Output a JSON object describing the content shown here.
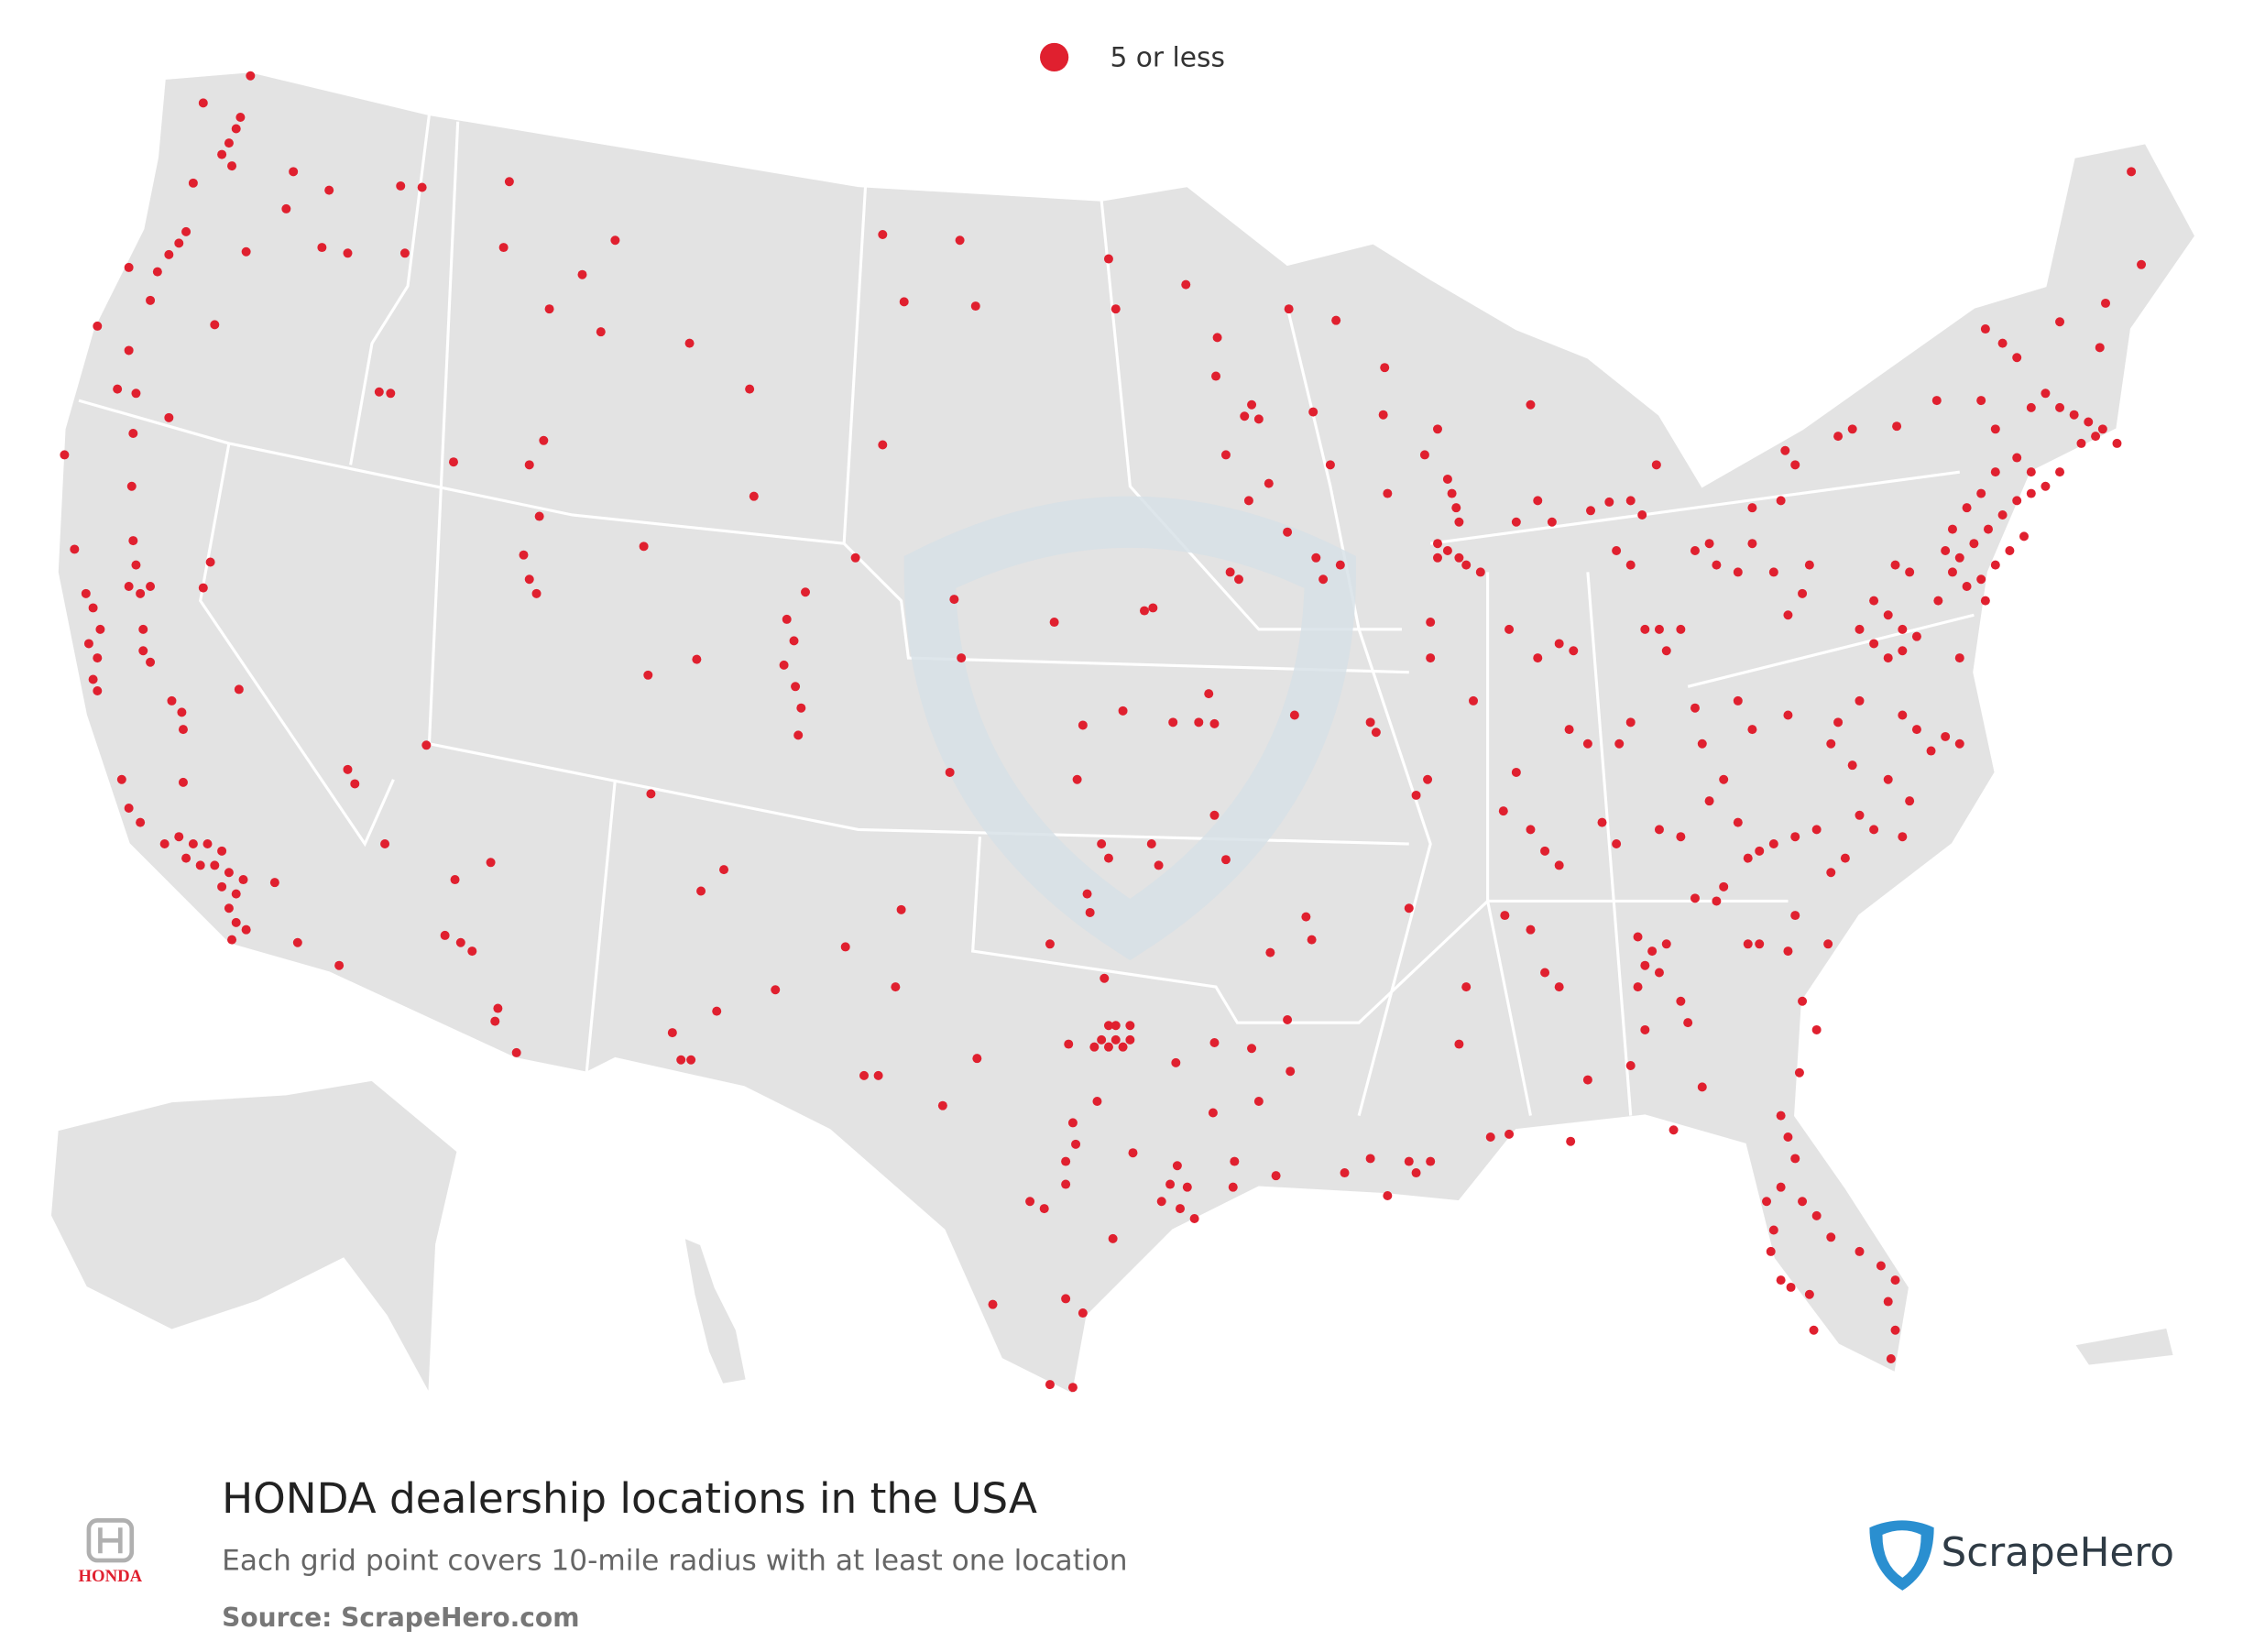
{
  "legend": {
    "label": "5 or less"
  },
  "footer": {
    "title": "HONDA dealership locations in the USA",
    "subtitle": "Each grid point covers 10-mile radius with at least one location",
    "source": "Source: ScrapeHero.com",
    "brand_logo_text": "HONDA",
    "publisher": "ScrapeHero"
  }
}
